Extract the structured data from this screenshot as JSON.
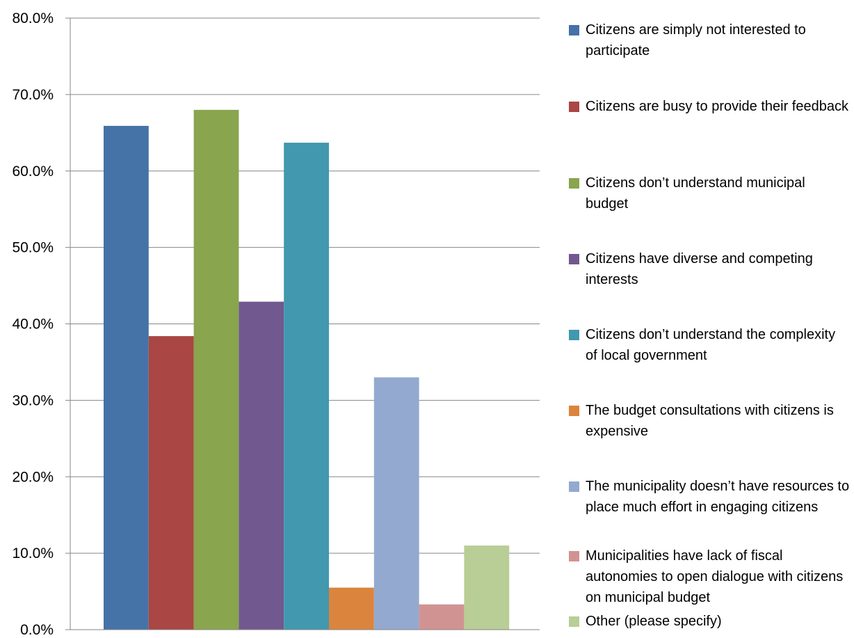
{
  "chart_data": {
    "type": "bar",
    "title": "",
    "xlabel": "",
    "ylabel": "",
    "ylim": [
      0,
      80
    ],
    "yticks": [
      "0.0%",
      "10.0%",
      "20.0%",
      "30.0%",
      "40.0%",
      "50.0%",
      "60.0%",
      "70.0%",
      "80.0%"
    ],
    "grid": true,
    "legend_position": "right",
    "series": [
      {
        "name": "Citizens are simply not interested to participate",
        "value": 65.9,
        "color": "#4572a7"
      },
      {
        "name": "Citizens are busy to provide their feedback",
        "value": 38.4,
        "color": "#aa4643"
      },
      {
        "name": "Citizens don’t understand municipal budget",
        "value": 68.0,
        "color": "#89a54e"
      },
      {
        "name": "Citizens have diverse and competing interests",
        "value": 42.9,
        "color": "#71588f"
      },
      {
        "name": "Citizens don’t understand the complexity of local government",
        "value": 63.7,
        "color": "#4198af"
      },
      {
        "name": "The budget consultations with citizens is expensive",
        "value": 5.5,
        "color": "#db843d"
      },
      {
        "name": "The municipality doesn’t have resources to place much effort in engaging citizens",
        "value": 33.0,
        "color": "#93a9cf"
      },
      {
        "name": "Municipalities have lack of fiscal autonomies to open dialogue with citizens on municipal budget",
        "value": 3.3,
        "color": "#d19392"
      },
      {
        "name": "Other (please specify)",
        "value": 11.0,
        "color": "#b9cd96"
      }
    ]
  }
}
